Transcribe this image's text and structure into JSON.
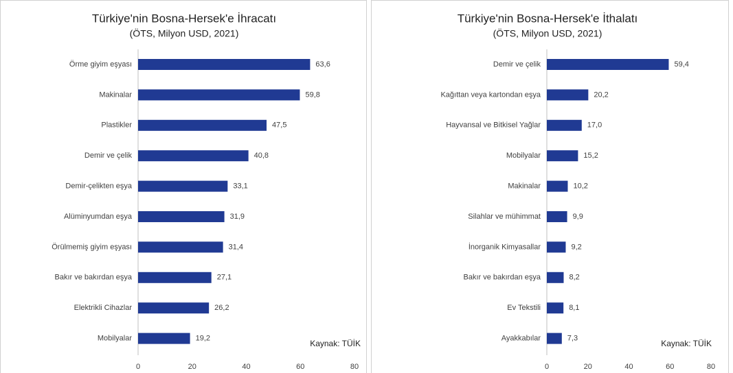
{
  "chart_data": [
    {
      "type": "barh",
      "title": "Türkiye'nin Bosna-Hersek'e İhracatı",
      "subtitle": "(ÖTS, Milyon USD, 2021)",
      "categories": [
        "Örme giyim eşyası",
        "Makinalar",
        "Plastikler",
        "Demir ve çelik",
        "Demir-çelikten eşya",
        "Alüminyumdan eşya",
        "Örülmemiş giyim eşyası",
        "Bakır ve bakırdan eşya",
        "Elektrikli Cihazlar",
        "Mobilyalar"
      ],
      "values": [
        63.6,
        59.8,
        47.5,
        40.8,
        33.1,
        31.9,
        31.4,
        27.1,
        26.2,
        19.2
      ],
      "value_labels": [
        "63,6",
        "59,8",
        "47,5",
        "40,8",
        "33,1",
        "31,9",
        "31,4",
        "27,1",
        "26,2",
        "19,2"
      ],
      "color": "#203a93",
      "xlim": [
        0,
        80
      ],
      "xticks": [
        0,
        20,
        40,
        60,
        80
      ],
      "annotation": "Kaynak: TÜİK"
    },
    {
      "type": "barh",
      "title": "Türkiye'nin Bosna-Hersek'e İthalatı",
      "subtitle": "(ÖTS, Milyon USD, 2021)",
      "categories": [
        "Demir ve çelik",
        "Kağıttan veya kartondan eşya",
        "Hayvansal ve Bitkisel Yağlar",
        "Mobilyalar",
        "Makinalar",
        "Silahlar ve mühimmat",
        "İnorganik Kimyasallar",
        "Bakır ve bakırdan eşya",
        "Ev Tekstili",
        "Ayakkabılar"
      ],
      "values": [
        59.4,
        20.2,
        17.0,
        15.2,
        10.2,
        9.9,
        9.2,
        8.2,
        8.1,
        7.3
      ],
      "value_labels": [
        "59,4",
        "20,2",
        "17,0",
        "15,2",
        "10,2",
        "9,9",
        "9,2",
        "8,2",
        "8,1",
        "7,3"
      ],
      "color": "#203a93",
      "xlim": [
        0,
        80
      ],
      "xticks": [
        0,
        20,
        40,
        60,
        80
      ],
      "annotation": "Kaynak: TÜİK"
    }
  ]
}
